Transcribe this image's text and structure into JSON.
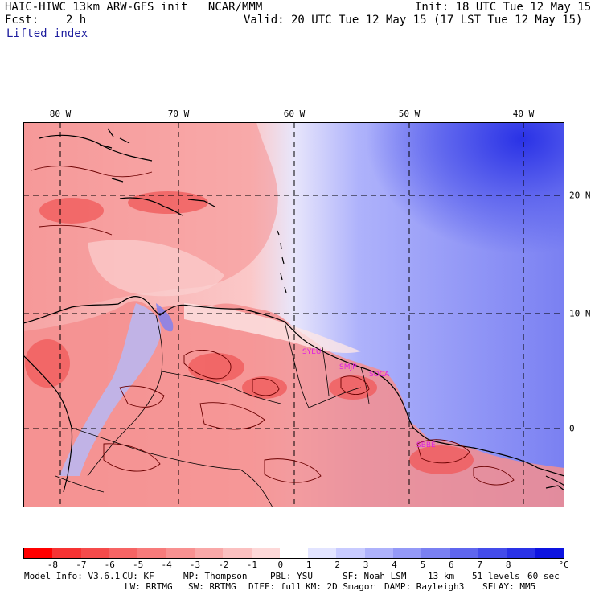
{
  "header": {
    "model": "HAIC-HIWC 13km ARW-GFS init   NCAR/MMM",
    "init": "Init: 18 UTC Tue 12 May 15",
    "fcst": "Fcst:    2 h",
    "valid": "Valid: 20 UTC Tue 12 May 15 (17 LST Tue 12 May 15)",
    "field": "Lifted index"
  },
  "axes": {
    "lon_labels": [
      "80 W",
      "70 W",
      "60 W",
      "50 W",
      "40 W"
    ],
    "lat_labels": [
      "20 N",
      "10 N",
      "0"
    ]
  },
  "map": {
    "region": "Caribbean / northern South America",
    "stations": [
      "SYEU",
      "SMJP",
      "SOCA",
      "SBBE"
    ],
    "colors": {
      "coast": "#000000",
      "contour": "#6b0000",
      "station": "#e020e0",
      "grid": "#000000"
    }
  },
  "colorbar": {
    "labels": [
      "-8",
      "-7",
      "-6",
      "-5",
      "-4",
      "-3",
      "-2",
      "-1",
      "0",
      "1",
      "2",
      "3",
      "4",
      "5",
      "6",
      "7",
      "8"
    ],
    "unit": "°C",
    "colors": [
      "#ff0000",
      "#f63333",
      "#f54b4b",
      "#f66464",
      "#f77b7b",
      "#f89191",
      "#f9a8a8",
      "#fbc0c0",
      "#fdd8d8",
      "#ffffff",
      "#e2e4ff",
      "#c8cbff",
      "#aeb2fb",
      "#9499f7",
      "#7a80f2",
      "#5f66ee",
      "#444cea",
      "#2a32e6",
      "#0d14e0"
    ]
  },
  "footer": {
    "line1": [
      "Model Info: V3.6.1",
      "CU: KF",
      "MP: Thompson",
      "PBL: YSU",
      "SF: Noah LSM",
      "13 km",
      "51 levels",
      "60 sec"
    ],
    "line2": [
      "LW: RRTMG",
      "SW: RRTMG",
      "DIFF: full",
      "KM: 2D Smagor",
      "DAMP: Rayleigh3",
      "SFLAY: MM5"
    ]
  }
}
